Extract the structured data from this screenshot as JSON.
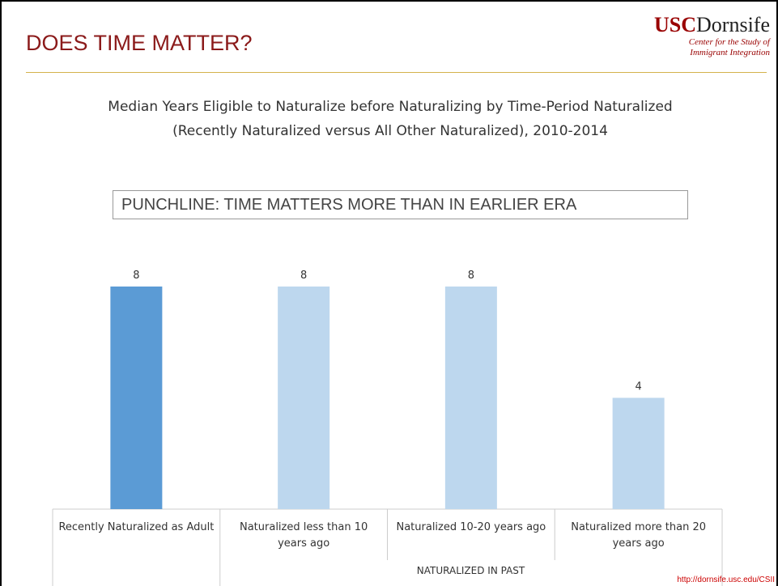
{
  "slide": {
    "title": "DOES TIME MATTER?",
    "logo": {
      "brand": "USC",
      "school": "Dornsife",
      "tagline": [
        "Center for the Study of",
        "Immigrant Integration"
      ]
    },
    "url": "http://dornsife.usc.edu/CSII"
  },
  "chart_data": {
    "type": "bar",
    "title": "Median Years Eligible to Naturalize before Naturalizing by Time-Period Naturalized (Recently Naturalized versus All Other Naturalized), 2010-2014",
    "annotation": "PUNCHLINE: TIME MATTERS MORE THAN IN EARLIER ERA",
    "categories": [
      "Recently Naturalized as Adult",
      "Naturalized less than 10 years ago",
      "Naturalized 10-20 years ago",
      "Naturalized more than 20 years ago"
    ],
    "group_label": "NATURALIZED IN PAST",
    "values": [
      8,
      8,
      8,
      4
    ],
    "colors": [
      "#5b9bd5",
      "#bdd7ee",
      "#bdd7ee",
      "#bdd7ee"
    ],
    "ylim": [
      0,
      8
    ]
  }
}
